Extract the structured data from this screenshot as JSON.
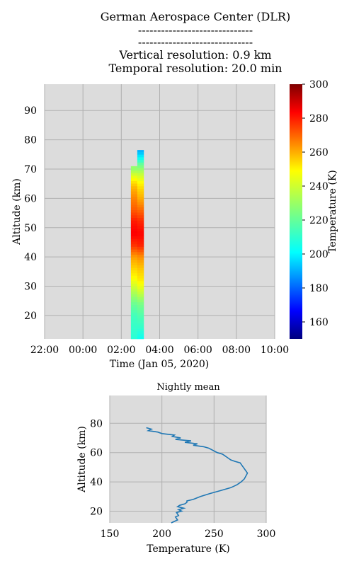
{
  "header": {
    "lines": [
      "German Aerospace Center (DLR)",
      "------------------------------",
      "------------------------------",
      "Vertical resolution: 0.9 km",
      "Temporal resolution: 20.0 min"
    ]
  },
  "chart_data": [
    {
      "type": "heatmap",
      "xlabel": "Time (Jan 05, 2020)",
      "ylabel": "Altitude (km)",
      "x_ticks": [
        "22:00",
        "00:00",
        "02:00",
        "04:00",
        "06:00",
        "08:00",
        "10:00"
      ],
      "y_ticks": [
        "20",
        "30",
        "40",
        "50",
        "60",
        "70",
        "80",
        "90"
      ],
      "xlim": [
        "22:00",
        "10:00"
      ],
      "ylim": [
        12,
        99
      ],
      "grid": true,
      "background": "#dcdcdc",
      "colorbar": {
        "label": "Temperature (K)",
        "range": [
          150,
          300
        ],
        "ticks": [
          "160",
          "180",
          "200",
          "220",
          "240",
          "260",
          "280",
          "300"
        ],
        "colormap": "jet"
      },
      "data": {
        "columns": [
          {
            "time": "02:40",
            "altitude_bottom_km": 12,
            "altitude_top_km": 71,
            "values_by_altitude": [
              [
                12,
                212
              ],
              [
                16,
                214
              ],
              [
                20,
                216
              ],
              [
                24,
                222
              ],
              [
                28,
                232
              ],
              [
                32,
                242
              ],
              [
                36,
                250
              ],
              [
                40,
                258
              ],
              [
                44,
                274
              ],
              [
                48,
                282
              ],
              [
                52,
                278
              ],
              [
                56,
                268
              ],
              [
                60,
                262
              ],
              [
                64,
                254
              ],
              [
                68,
                238
              ],
              [
                70,
                228
              ]
            ]
          },
          {
            "time": "03:00",
            "altitude_bottom_km": 12,
            "altitude_top_km": 76.5,
            "values_by_altitude": [
              [
                12,
                208
              ],
              [
                16,
                214
              ],
              [
                20,
                218
              ],
              [
                24,
                224
              ],
              [
                28,
                236
              ],
              [
                32,
                246
              ],
              [
                36,
                252
              ],
              [
                40,
                260
              ],
              [
                44,
                276
              ],
              [
                48,
                281
              ],
              [
                52,
                276
              ],
              [
                56,
                266
              ],
              [
                60,
                256
              ],
              [
                64,
                248
              ],
              [
                68,
                236
              ],
              [
                72,
                220
              ],
              [
                74,
                206
              ],
              [
                76,
                195
              ]
            ]
          }
        ]
      }
    },
    {
      "type": "line",
      "title": "Nightly mean",
      "xlabel": "Temperature (K)",
      "ylabel": "Altitude (km)",
      "x_ticks": [
        "150",
        "200",
        "250",
        "300"
      ],
      "y_ticks": [
        "20",
        "40",
        "60",
        "80"
      ],
      "xlim": [
        150,
        300
      ],
      "ylim": [
        12,
        99
      ],
      "grid": true,
      "background": "#dcdcdc",
      "line_color": "#1f77b4",
      "series": [
        {
          "x": [
            209,
            215,
            213,
            216,
            214,
            219,
            216,
            221,
            215,
            217,
            222,
            224,
            224,
            230,
            237,
            246,
            256,
            266,
            272,
            276,
            279,
            282,
            279,
            277,
            275,
            270,
            266,
            264,
            262,
            260,
            258,
            253,
            245,
            240,
            230,
            234,
            222,
            228,
            213,
            218,
            210,
            212,
            200,
            196,
            187,
            190,
            185
          ],
          "y": [
            12,
            14,
            16,
            17,
            19,
            20,
            21,
            22,
            23,
            24,
            25,
            26,
            27,
            28,
            30,
            32,
            34,
            36,
            38,
            40,
            42,
            46,
            49,
            51,
            53,
            54,
            55,
            56,
            57,
            58,
            59,
            60,
            63,
            64,
            65,
            66,
            67,
            68,
            69,
            70,
            71,
            72,
            73,
            74,
            75,
            76,
            77
          ]
        }
      ]
    }
  ]
}
